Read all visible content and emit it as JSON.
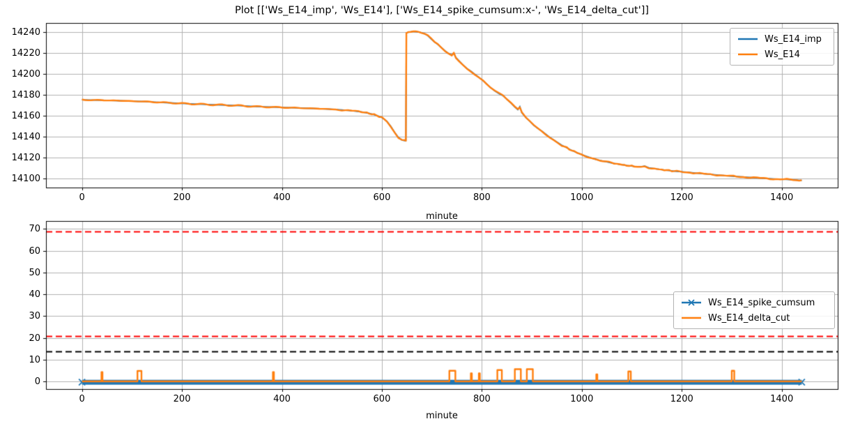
{
  "title": "Plot [['Ws_E14_imp', 'Ws_E14'], ['Ws_E14_spike_cumsum:x-', 'Ws_E14_delta_cut']]",
  "colors": {
    "blue": "#1f77b4",
    "orange": "#ff7f0e",
    "red": "#ff0000",
    "black": "#000000",
    "grid": "#b0b0b0",
    "spine": "#000000",
    "legend_border": "#b3b3b3"
  },
  "chart_data": [
    {
      "type": "line",
      "xlabel": "minute",
      "ylabel": "",
      "xlim": [
        -72,
        1512
      ],
      "ylim": [
        14091.5,
        14249
      ],
      "xticks": [
        0,
        200,
        400,
        600,
        800,
        1000,
        1200,
        1400
      ],
      "yticks": [
        14100,
        14120,
        14140,
        14160,
        14180,
        14200,
        14220,
        14240
      ],
      "grid": true,
      "legend_position": "upper right",
      "series": [
        {
          "name": "Ws_E14_imp",
          "color": "#1f77b4",
          "note": "coincides with Ws_E14 and is hidden beneath it",
          "points_ref": "same as Ws_E14"
        },
        {
          "name": "Ws_E14",
          "color": "#ff7f0e",
          "points": [
            [
              0,
              14175.5
            ],
            [
              25,
              14175.2
            ],
            [
              50,
              14175.0
            ],
            [
              75,
              14174.6
            ],
            [
              100,
              14174.2
            ],
            [
              125,
              14173.8
            ],
            [
              150,
              14173.2
            ],
            [
              175,
              14172.6
            ],
            [
              200,
              14172.0
            ],
            [
              225,
              14171.5
            ],
            [
              250,
              14171.0
            ],
            [
              275,
              14170.6
            ],
            [
              300,
              14170.2
            ],
            [
              325,
              14169.6
            ],
            [
              350,
              14169.0
            ],
            [
              375,
              14168.6
            ],
            [
              400,
              14168.2
            ],
            [
              425,
              14167.8
            ],
            [
              450,
              14167.4
            ],
            [
              475,
              14167.0
            ],
            [
              500,
              14166.4
            ],
            [
              520,
              14165.8
            ],
            [
              540,
              14165.0
            ],
            [
              560,
              14163.8
            ],
            [
              575,
              14162.5
            ],
            [
              590,
              14160.5
            ],
            [
              600,
              14158.5
            ],
            [
              610,
              14155.0
            ],
            [
              618,
              14150.0
            ],
            [
              626,
              14144.0
            ],
            [
              633,
              14139.5
            ],
            [
              640,
              14137.0
            ],
            [
              646,
              14136.3
            ],
            [
              648,
              14136.5
            ],
            [
              649,
              14239.5
            ],
            [
              653,
              14240.2
            ],
            [
              658,
              14240.6
            ],
            [
              663,
              14241.0
            ],
            [
              668,
              14240.8
            ],
            [
              674,
              14240.4
            ],
            [
              680,
              14239.6
            ],
            [
              686,
              14238.6
            ],
            [
              692,
              14236.8
            ],
            [
              698,
              14234.0
            ],
            [
              705,
              14231.0
            ],
            [
              712,
              14228.5
            ],
            [
              719,
              14225.5
            ],
            [
              726,
              14222.5
            ],
            [
              733,
              14220.0
            ],
            [
              740,
              14218.5
            ],
            [
              744,
              14220.0
            ],
            [
              748,
              14216.0
            ],
            [
              755,
              14212.5
            ],
            [
              762,
              14209.0
            ],
            [
              770,
              14205.5
            ],
            [
              778,
              14203.0
            ],
            [
              786,
              14200.0
            ],
            [
              794,
              14197.0
            ],
            [
              802,
              14194.0
            ],
            [
              810,
              14190.5
            ],
            [
              818,
              14187.0
            ],
            [
              826,
              14184.0
            ],
            [
              834,
              14181.5
            ],
            [
              842,
              14179.5
            ],
            [
              850,
              14176.0
            ],
            [
              858,
              14172.5
            ],
            [
              866,
              14168.5
            ],
            [
              872,
              14166.0
            ],
            [
              876,
              14169.0
            ],
            [
              880,
              14163.0
            ],
            [
              888,
              14158.5
            ],
            [
              896,
              14155.0
            ],
            [
              904,
              14151.0
            ],
            [
              912,
              14148.0
            ],
            [
              920,
              14145.5
            ],
            [
              928,
              14142.5
            ],
            [
              936,
              14139.5
            ],
            [
              944,
              14137.0
            ],
            [
              952,
              14134.5
            ],
            [
              960,
              14132.0
            ],
            [
              970,
              14129.5
            ],
            [
              980,
              14127.0
            ],
            [
              990,
              14125.0
            ],
            [
              1000,
              14123.0
            ],
            [
              1012,
              14121.0
            ],
            [
              1024,
              14119.0
            ],
            [
              1036,
              14117.5
            ],
            [
              1048,
              14116.2
            ],
            [
              1060,
              14115.0
            ],
            [
              1075,
              14113.8
            ],
            [
              1090,
              14112.6
            ],
            [
              1105,
              14111.8
            ],
            [
              1118,
              14111.4
            ],
            [
              1126,
              14112.0
            ],
            [
              1134,
              14110.5
            ],
            [
              1145,
              14109.6
            ],
            [
              1160,
              14108.6
            ],
            [
              1175,
              14107.8
            ],
            [
              1190,
              14107.0
            ],
            [
              1210,
              14106.2
            ],
            [
              1230,
              14105.2
            ],
            [
              1250,
              14104.4
            ],
            [
              1270,
              14103.6
            ],
            [
              1290,
              14102.8
            ],
            [
              1310,
              14102.0
            ],
            [
              1330,
              14101.4
            ],
            [
              1350,
              14100.8
            ],
            [
              1370,
              14100.2
            ],
            [
              1390,
              14099.6
            ],
            [
              1410,
              14099.2
            ],
            [
              1430,
              14098.6
            ],
            [
              1440,
              14098.3
            ]
          ]
        }
      ]
    },
    {
      "type": "line",
      "xlabel": "minute",
      "ylabel": "",
      "xlim": [
        -72,
        1512
      ],
      "ylim": [
        -3.5,
        73.6
      ],
      "xticks": [
        0,
        200,
        400,
        600,
        800,
        1000,
        1200,
        1400
      ],
      "yticks": [
        0,
        10,
        20,
        30,
        40,
        50,
        60,
        70
      ],
      "grid": true,
      "legend_position": "center right",
      "series": [
        {
          "name": "Ws_E14_spike_cumsum",
          "color": "#1f77b4",
          "marker": "x",
          "y_value": -0.35,
          "band_half_height": 1.1,
          "x_start": 0,
          "x_end": 1440
        },
        {
          "name": "Ws_E14_delta_cut",
          "color": "#ff7f0e",
          "baseline": 0,
          "spikes": [
            [
              39,
              41,
              4.3
            ],
            [
              111,
              119,
              4.8
            ],
            [
              382,
              384,
              4.3
            ],
            [
              735,
              747,
              4.9
            ],
            [
              778,
              780,
              3.7
            ],
            [
              794,
              796,
              3.7
            ],
            [
              831,
              840,
              5.2
            ],
            [
              866,
              878,
              5.6
            ],
            [
              890,
              902,
              5.6
            ],
            [
              1029,
              1031,
              3.2
            ],
            [
              1093,
              1098,
              4.6
            ],
            [
              1300,
              1305,
              4.9
            ]
          ]
        }
      ],
      "ref_lines": [
        {
          "y": 68.8,
          "color": "#ff0000",
          "style": "dashed"
        },
        {
          "y": 20.8,
          "color": "#ff0000",
          "style": "dashed"
        },
        {
          "y": 13.9,
          "color": "#000000",
          "style": "dashed"
        }
      ]
    }
  ],
  "legend_top": {
    "items": [
      {
        "label": "Ws_E14_imp",
        "color": "#1f77b4",
        "marker": "none"
      },
      {
        "label": "Ws_E14",
        "color": "#ff7f0e",
        "marker": "none"
      }
    ]
  },
  "legend_bottom": {
    "items": [
      {
        "label": "Ws_E14_spike_cumsum",
        "color": "#1f77b4",
        "marker": "x"
      },
      {
        "label": "Ws_E14_delta_cut",
        "color": "#ff7f0e",
        "marker": "none"
      }
    ]
  }
}
